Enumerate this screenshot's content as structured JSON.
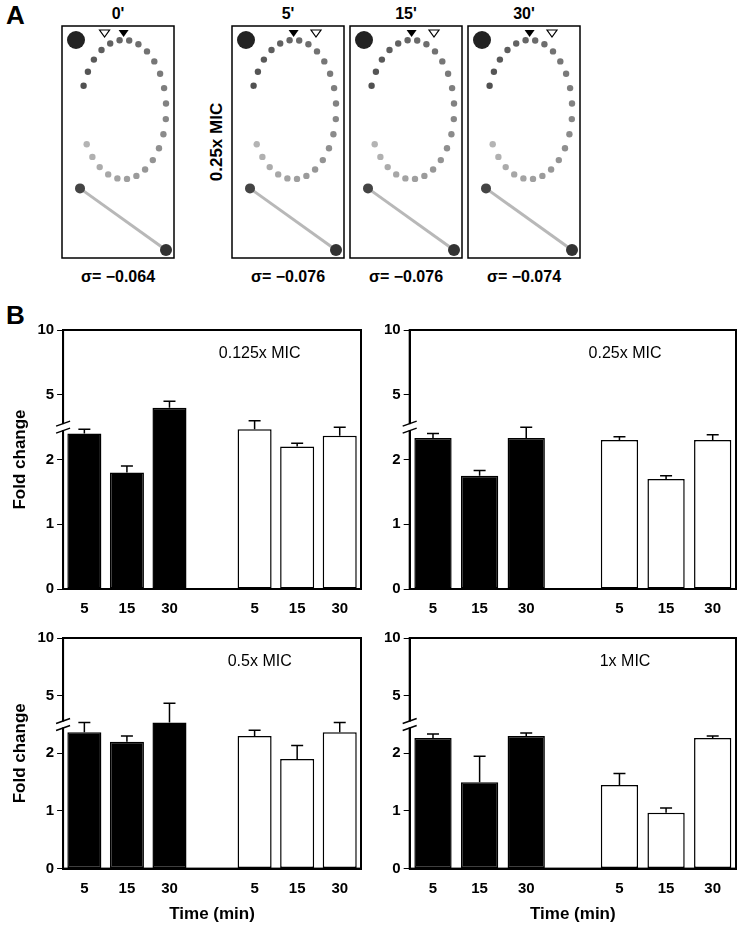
{
  "panel_labels": [
    "A",
    "B"
  ],
  "gel_panel": {
    "side_label": "0.25x MIC",
    "lanes": [
      {
        "time": "0'",
        "sigma": "σ= −0.064"
      },
      {
        "time": "5'",
        "sigma": "σ= −0.076"
      },
      {
        "time": "15'",
        "sigma": "σ= −0.076"
      },
      {
        "time": "30'",
        "sigma": "σ= −0.074"
      }
    ]
  },
  "chart_data": [
    {
      "type": "bar",
      "title": "0.125x MIC",
      "y_label": "Fold change",
      "categories": [
        "5",
        "15",
        "30",
        null,
        "5",
        "15",
        "30"
      ],
      "values": [
        3.2,
        1.8,
        4.4,
        null,
        3.4,
        2.6,
        3.1
      ],
      "errors": [
        0.2,
        0.1,
        0.3,
        null,
        0.4,
        0.15,
        0.4
      ],
      "colors": [
        "#000000",
        "#000000",
        "#000000",
        null,
        "#ffffff",
        "#ffffff",
        "#ffffff"
      ],
      "ylim": [
        0,
        10
      ],
      "yticks": [
        0,
        1,
        2,
        5,
        10
      ],
      "grid": false
    },
    {
      "type": "bar",
      "title": "0.25x MIC",
      "categories": [
        "5",
        "15",
        "30",
        null,
        "5",
        "15",
        "30"
      ],
      "values": [
        3.0,
        1.75,
        3.0,
        null,
        2.9,
        1.7,
        2.9
      ],
      "errors": [
        0.2,
        0.08,
        0.5,
        null,
        0.15,
        0.05,
        0.25
      ],
      "colors": [
        "#000000",
        "#000000",
        "#000000",
        null,
        "#ffffff",
        "#ffffff",
        "#ffffff"
      ],
      "ylim": [
        0,
        10
      ],
      "yticks": [
        0,
        1,
        2,
        5,
        10
      ],
      "grid": false
    },
    {
      "type": "bar",
      "title": "0.5x MIC",
      "y_label": "Fold change",
      "x_label": "Time (min)",
      "categories": [
        "5",
        "15",
        "30",
        null,
        "5",
        "15",
        "30"
      ],
      "values": [
        3.1,
        2.6,
        3.6,
        null,
        2.9,
        1.9,
        3.1
      ],
      "errors": [
        0.5,
        0.3,
        1.0,
        null,
        0.3,
        0.5,
        0.5
      ],
      "colors": [
        "#000000",
        "#000000",
        "#000000",
        null,
        "#ffffff",
        "#ffffff",
        "#ffffff"
      ],
      "ylim": [
        0,
        10
      ],
      "yticks": [
        0,
        1,
        2,
        5,
        10
      ],
      "grid": false
    },
    {
      "type": "bar",
      "title": "1x MIC",
      "x_label": "Time (min)",
      "categories": [
        "5",
        "15",
        "30",
        null,
        "5",
        "15",
        "30"
      ],
      "values": [
        2.8,
        1.5,
        2.9,
        null,
        1.45,
        0.97,
        2.8
      ],
      "errors": [
        0.2,
        0.45,
        0.15,
        null,
        0.2,
        0.08,
        0.1
      ],
      "colors": [
        "#000000",
        "#000000",
        "#000000",
        null,
        "#ffffff",
        "#ffffff",
        "#ffffff"
      ],
      "ylim": [
        0,
        10
      ],
      "yticks": [
        0,
        1,
        2,
        5,
        10
      ],
      "grid": false
    }
  ]
}
